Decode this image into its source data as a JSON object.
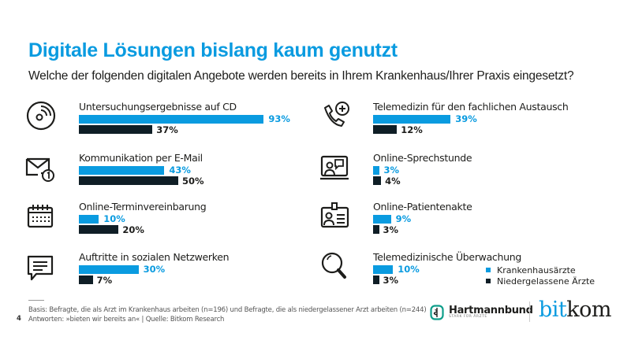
{
  "header": {
    "title": "Digitale Lösungen bislang kaum genutzt",
    "subtitle": "Welche der folgenden digitalen Angebote werden bereits in Ihrem Krankenhaus/Ihrer Praxis eingesetzt?"
  },
  "colors": {
    "krankenhaus": "#0a9be0",
    "niedergelassen": "#0f1e26",
    "title": "#0a9be0"
  },
  "chart_data": {
    "type": "bar",
    "orientation": "horizontal",
    "title": "Digitale Lösungen bislang kaum genutzt",
    "subtitle": "Welche der folgenden digitalen Angebote werden bereits in Ihrem Krankenhaus/Ihrer Praxis eingesetzt?",
    "unit": "%",
    "xlim": [
      0,
      100
    ],
    "legend_position": "bottom-right",
    "categories": [
      "Untersuchungsergebnisse auf  CD",
      "Kommunikation per E-Mail",
      "Online-Terminvereinbarung",
      "Auftritte in sozialen Netzwerken",
      "Telemedizin für den fachlichen Austausch",
      "Online-Sprechstunde",
      "Online-Patientenakte",
      "Telemedizinische Überwachung"
    ],
    "icons": [
      "cd-icon",
      "email-icon",
      "calendar-icon",
      "chat-bubble-icon",
      "phone-medical-icon",
      "video-consultation-icon",
      "id-card-icon",
      "magnifier-icon"
    ],
    "series": [
      {
        "name": "Krankenhausärzte",
        "color": "#0a9be0",
        "values": [
          93,
          43,
          10,
          30,
          39,
          3,
          9,
          10
        ],
        "labels": [
          "93%",
          "43%",
          "10%",
          "30%",
          "39%",
          "3%",
          "9%",
          "10%"
        ]
      },
      {
        "name": "Niedergelassene Ärzte",
        "color": "#0f1e26",
        "values": [
          37,
          50,
          20,
          7,
          12,
          4,
          3,
          3
        ],
        "labels": [
          "37%",
          "50%",
          "20%",
          "7%",
          "12%",
          "4%",
          "3%",
          "3%"
        ]
      }
    ]
  },
  "legend": {
    "items": [
      {
        "label": "Krankenhausärzte"
      },
      {
        "label": "Niedergelassene Ärzte"
      }
    ]
  },
  "footer": {
    "page_number": "4",
    "basis": "Basis: Befragte, die als Arzt im Krankenhaus arbeiten (n=196) und Befragte, die als niedergelassener Arzt arbeiten (n=244)",
    "answers": "Antworten: »bieten wir bereits an« | Quelle: Bitkom Research",
    "logo_hartmannbund": "Hartmannbund",
    "logo_hartmannbund_tagline": "STARK FÜR ÄRZTE",
    "logo_bitkom_bit": "bit",
    "logo_bitkom_kom": "kom"
  }
}
